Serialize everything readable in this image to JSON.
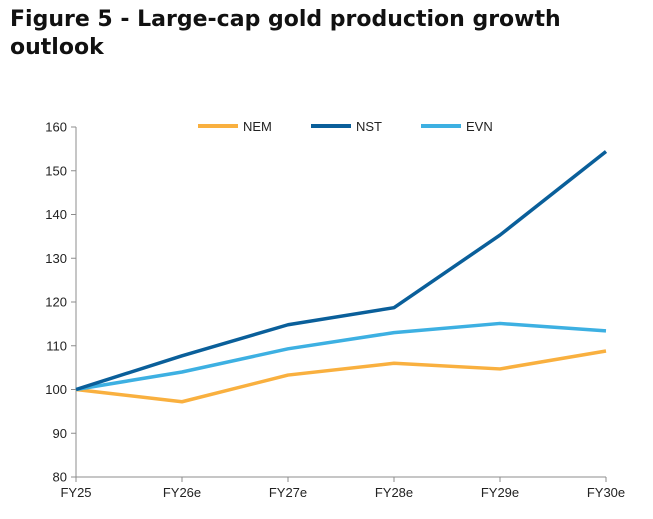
{
  "figure_title": "Figure 5 - Large-cap gold production growth outlook",
  "chart_data": {
    "type": "line",
    "title": "",
    "xlabel": "",
    "ylabel": "",
    "categories": [
      "FY25",
      "FY26e",
      "FY27e",
      "FY28e",
      "FY29e",
      "FY30e"
    ],
    "ylim": [
      80,
      160
    ],
    "yticks": [
      80,
      90,
      100,
      110,
      120,
      130,
      140,
      150,
      160
    ],
    "grid": false,
    "legend_position": "top-center",
    "series": [
      {
        "name": "NEM",
        "color": "#F9B03F",
        "values": [
          100,
          97.2,
          103.3,
          106.0,
          104.7,
          108.8
        ]
      },
      {
        "name": "NST",
        "color": "#0A5F9A",
        "values": [
          100,
          107.7,
          114.8,
          118.7,
          135.3,
          154.4
        ]
      },
      {
        "name": "EVN",
        "color": "#3DB0E2",
        "values": [
          100,
          104.0,
          109.3,
          113.0,
          115.1,
          113.4
        ]
      }
    ]
  }
}
